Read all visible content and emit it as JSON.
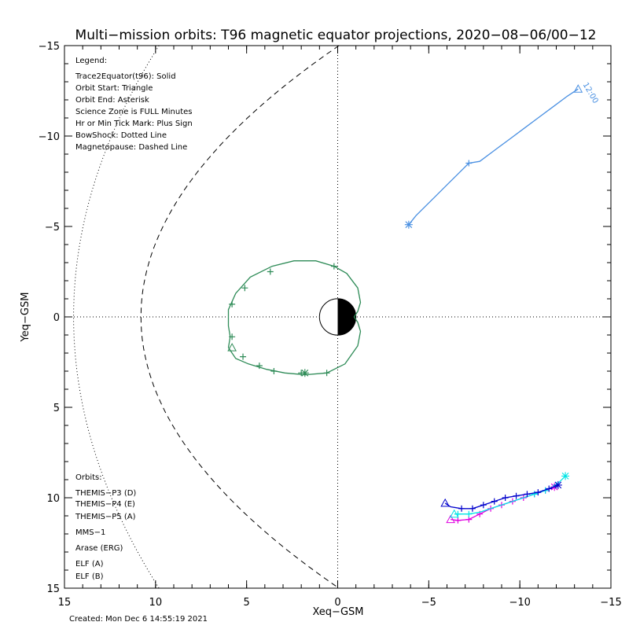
{
  "chart_data": {
    "type": "scatter",
    "title": "Multi−mission orbits: T96 magnetic equator projections, 2020−08−06/00−12",
    "xlabel": "Xeq−GSM",
    "ylabel": "Yeq−GSM",
    "xlim": [
      15,
      -15
    ],
    "ylim": [
      -15,
      15
    ],
    "x_ticks": [
      15,
      10,
      5,
      0,
      -5,
      -10,
      -15
    ],
    "x_tick_labels": [
      "15",
      "10",
      "5",
      "0",
      "−5",
      "−10",
      "−15"
    ],
    "y_ticks": [
      -15,
      -10,
      -5,
      0,
      5,
      10,
      15
    ],
    "y_tick_labels": [
      "−15",
      "−10",
      "−5",
      "0",
      "5",
      "10",
      "15"
    ],
    "created": "Created: Mon Dec  6 14:55:19 2021",
    "legend_title": "Legend:",
    "legend_lines": [
      "Trace2Equator(t96): Solid",
      "Orbit Start: Triangle",
      "Orbit End: Asterisk",
      "Science Zone is FULL Minutes",
      "Hr or Min Tick Mark: Plus Sign",
      "BowShock: Dotted Line",
      "Magnetopause: Dashed Line"
    ],
    "orbits_title": "Orbits:",
    "orbit_legend": [
      {
        "label": "THEMIS−P3 (D)",
        "color": "#00e5e5"
      },
      {
        "label": "THEMIS−P4 (E)",
        "color": "#0000cc"
      },
      {
        "label": "THEMIS−P5 (A)",
        "color": "#e000e0"
      },
      {
        "label": "MMS−1",
        "color": "#000000"
      },
      {
        "label": "Arase (ERG)",
        "color": "#2e8b57"
      },
      {
        "label": "ELF (A)",
        "color": "#4a90e2"
      },
      {
        "label": "ELF (B)",
        "color": "#e00000"
      }
    ],
    "series": [
      {
        "name": "ELF (A)",
        "color": "#4a90e2",
        "annotation": "12:00",
        "points": [
          [
            -13.2,
            -12.6
          ],
          [
            -12.6,
            -12.2
          ],
          [
            -11.8,
            -11.6
          ],
          [
            -11,
            -11
          ],
          [
            -10.2,
            -10.4
          ],
          [
            -9.4,
            -9.8
          ],
          [
            -8.6,
            -9.2
          ],
          [
            -7.8,
            -8.6
          ],
          [
            -7.2,
            -8.5
          ],
          [
            -6.6,
            -7.9
          ],
          [
            -6,
            -7.3
          ],
          [
            -5.4,
            -6.7
          ],
          [
            -4.8,
            -6.1
          ],
          [
            -4.3,
            -5.6
          ],
          [
            -3.9,
            -5.1
          ]
        ],
        "start": [
          -13.2,
          -12.6
        ],
        "end": [
          -3.9,
          -5.1
        ],
        "ticks": [
          [
            -7.2,
            -8.5
          ]
        ]
      },
      {
        "name": "Arase (ERG)",
        "color": "#2e8b57",
        "points": [
          [
            6,
            1.7
          ],
          [
            5.6,
            2.3
          ],
          [
            4.9,
            2.6
          ],
          [
            3.9,
            2.9
          ],
          [
            2.9,
            3.1
          ],
          [
            1.8,
            3.2
          ],
          [
            0.6,
            3.1
          ],
          [
            -0.4,
            2.6
          ],
          [
            -1.1,
            1.6
          ],
          [
            -1.25,
            0.8
          ],
          [
            -1.1,
            0.3
          ],
          [
            -0.9,
            0
          ],
          [
            -1.1,
            -0.3
          ],
          [
            -1.25,
            -0.8
          ],
          [
            -1.1,
            -1.6
          ],
          [
            -0.5,
            -2.4
          ],
          [
            0.2,
            -2.8
          ],
          [
            1.2,
            -3.1
          ],
          [
            2.4,
            -3.1
          ],
          [
            3.6,
            -2.8
          ],
          [
            4.8,
            -2.2
          ],
          [
            5.6,
            -1.3
          ],
          [
            6,
            -0.4
          ],
          [
            6,
            0.5
          ],
          [
            5.9,
            1.1
          ],
          [
            6,
            1.7
          ]
        ],
        "start": [
          5.8,
          1.7
        ],
        "end": [
          1.8,
          3.1
        ],
        "ticks": [
          [
            5.8,
            -0.7
          ],
          [
            5.1,
            -1.6
          ],
          [
            3.7,
            -2.5
          ],
          [
            0.2,
            -2.8
          ],
          [
            5.8,
            1.1
          ],
          [
            5.2,
            2.2
          ],
          [
            4.3,
            2.7
          ],
          [
            3.5,
            3.0
          ],
          [
            2,
            3.1
          ],
          [
            0.6,
            3.1
          ]
        ]
      },
      {
        "name": "THEMIS−P5 (A)",
        "color": "#e000e0",
        "points": [
          [
            -11.9,
            9.4
          ],
          [
            -11.4,
            9.6
          ],
          [
            -10.8,
            9.8
          ],
          [
            -10.2,
            10
          ],
          [
            -9.6,
            10.2
          ],
          [
            -9,
            10.4
          ],
          [
            -8.4,
            10.6
          ],
          [
            -7.8,
            10.9
          ],
          [
            -7.2,
            11.2
          ],
          [
            -6.6,
            11.25
          ],
          [
            -6.2,
            11.2
          ]
        ],
        "start": [
          -6.2,
          11.2
        ],
        "end": [
          -11.9,
          9.4
        ],
        "ticks": [
          [
            -11.4,
            9.6
          ],
          [
            -10.8,
            9.8
          ],
          [
            -10.2,
            10
          ],
          [
            -9.6,
            10.2
          ],
          [
            -9,
            10.4
          ],
          [
            -8.4,
            10.6
          ],
          [
            -7.8,
            10.9
          ],
          [
            -7.2,
            11.2
          ],
          [
            -6.6,
            11.25
          ]
        ]
      },
      {
        "name": "THEMIS−P3 (D)",
        "color": "#00e5e5",
        "points": [
          [
            -12.5,
            8.8
          ],
          [
            -12,
            9.3
          ],
          [
            -11.4,
            9.6
          ],
          [
            -10.8,
            9.8
          ],
          [
            -10.2,
            10
          ],
          [
            -9.6,
            10.2
          ],
          [
            -9,
            10.4
          ],
          [
            -8.4,
            10.6
          ],
          [
            -7.8,
            10.8
          ],
          [
            -7.2,
            10.9
          ],
          [
            -6.6,
            10.9
          ],
          [
            -6.4,
            10.9
          ]
        ],
        "start": [
          -6.4,
          10.9
        ],
        "end": [
          -12.5,
          8.8
        ],
        "ticks": [
          [
            -12,
            9.3
          ],
          [
            -11.4,
            9.6
          ],
          [
            -10.8,
            9.8
          ],
          [
            -7.2,
            10.9
          ],
          [
            -6.6,
            10.9
          ]
        ]
      },
      {
        "name": "THEMIS−P4 (E)",
        "color": "#0000cc",
        "points": [
          [
            -12.1,
            9.3
          ],
          [
            -11.6,
            9.5
          ],
          [
            -11,
            9.7
          ],
          [
            -10.4,
            9.8
          ],
          [
            -9.8,
            9.9
          ],
          [
            -9.2,
            10
          ],
          [
            -8.6,
            10.2
          ],
          [
            -8,
            10.4
          ],
          [
            -7.4,
            10.6
          ],
          [
            -6.8,
            10.6
          ],
          [
            -6.2,
            10.5
          ],
          [
            -5.9,
            10.3
          ]
        ],
        "start": [
          -5.9,
          10.3
        ],
        "end": [
          -12.1,
          9.3
        ],
        "ticks": [
          [
            -11.6,
            9.5
          ],
          [
            -11,
            9.7
          ],
          [
            -10.4,
            9.8
          ],
          [
            -9.8,
            9.9
          ],
          [
            -9.2,
            10
          ],
          [
            -8.6,
            10.2
          ],
          [
            -8,
            10.4
          ],
          [
            -7.4,
            10.6
          ],
          [
            -6.8,
            10.6
          ]
        ]
      }
    ]
  }
}
